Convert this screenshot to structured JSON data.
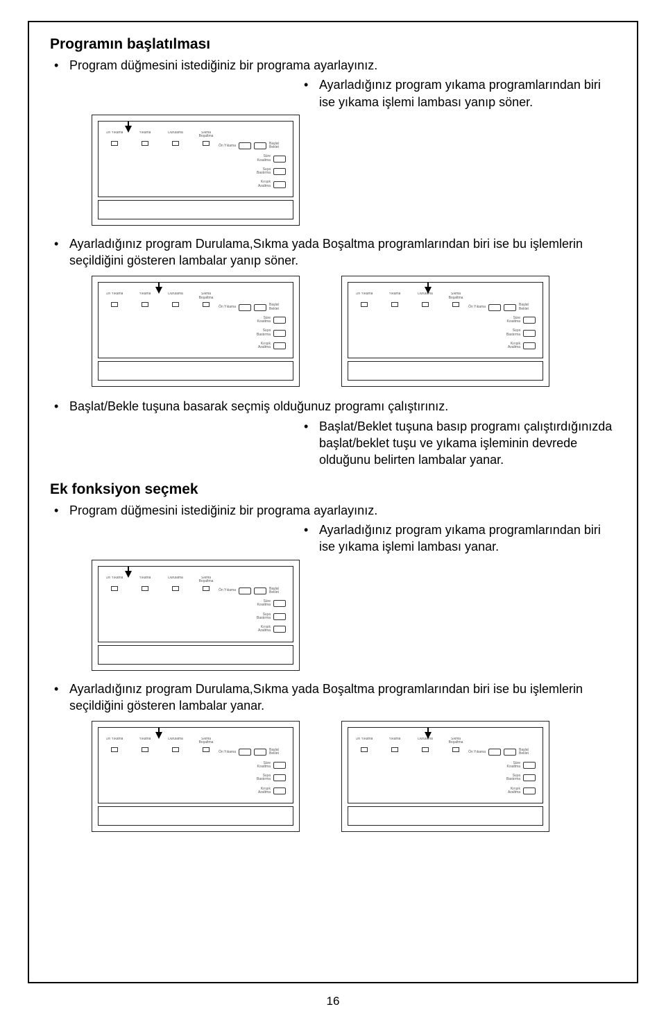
{
  "section1": {
    "title": "Programın başlatılması",
    "bullet1": "Program düğmesini istediğiniz bir programa ayarlayınız.",
    "bullet2": "Ayarladığınız program yıkama programlarından biri ise yıkama işlemi lambası yanıp söner.",
    "bullet3": "Ayarladığınız program Durulama,Sıkma yada Boşaltma programlarından biri ise bu işlemlerin seçildiğini gösteren lambalar yanıp söner.",
    "bullet4": "Başlat/Bekle tuşuna basarak seçmiş olduğunuz programı çalıştırınız.",
    "bullet5": "Başlat/Beklet tuşuna basıp programı çalıştırdığınızda başlat/beklet tuşu ve yıkama işleminin devrede olduğunu belirten lambalar yanar."
  },
  "section2": {
    "title": "Ek fonksiyon seçmek",
    "bullet1": "Program düğmesini istediğiniz bir programa ayarlayınız.",
    "bullet2": "Ayarladığınız program yıkama programlarından biri ise yıkama işlemi lambası yanar.",
    "bullet3": "Ayarladığınız program Durulama,Sıkma yada Boşaltma programlarından biri ise bu işlemlerin seçildiğini gösteren lambalar yanar."
  },
  "panel": {
    "dots": [
      "Ön Yıkama",
      "Yıkama",
      "Durulama",
      "Sıkma Boşaltma"
    ],
    "right": [
      {
        "label": "Ön Yıkama",
        "btn2": "Başlat Beklet"
      },
      {
        "label": "Süre Kısaltma"
      },
      {
        "label": "Suya Bastırma"
      },
      {
        "label": "Kırışık Azaltma"
      }
    ],
    "arrow_variants": [
      1,
      2,
      3
    ]
  },
  "page_number": "16",
  "colors": {
    "text": "#000000",
    "bg": "#ffffff",
    "border": "#222222",
    "tiny": "#555555"
  }
}
